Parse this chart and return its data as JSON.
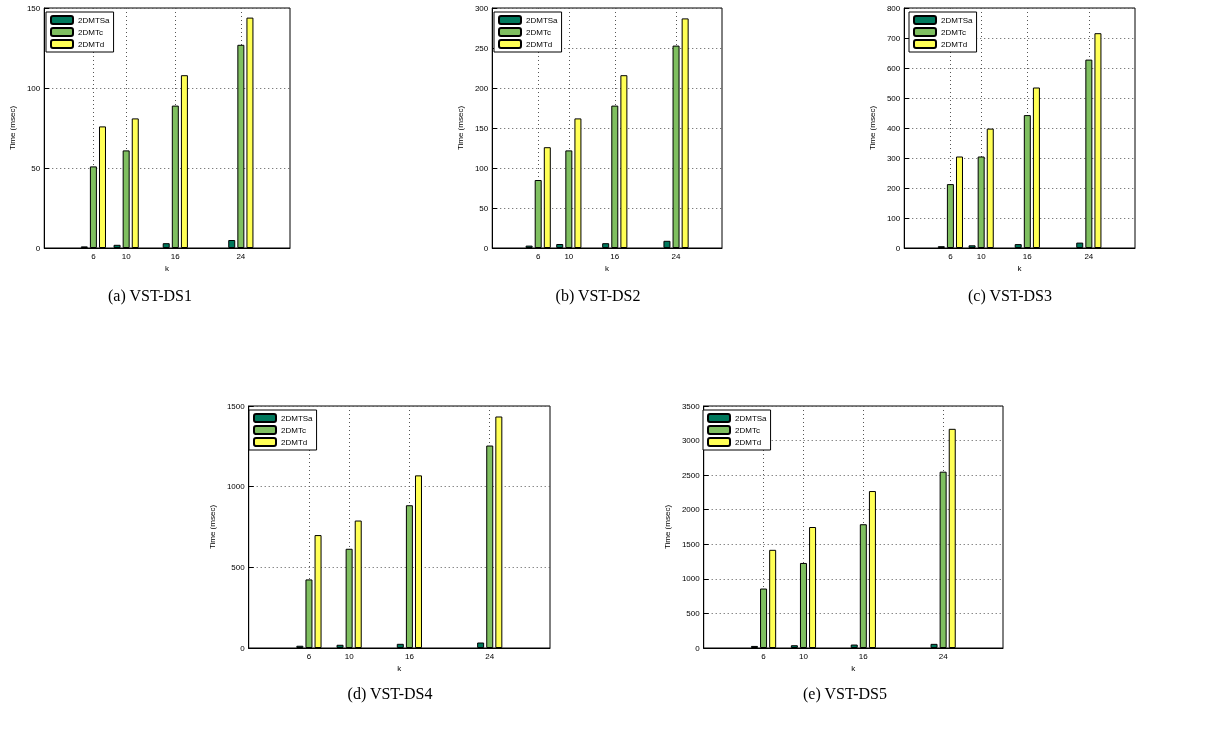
{
  "chart_data": [
    {
      "type": "bar",
      "title": "(a) VST-DS1",
      "xlabel": "k",
      "ylabel": "Time (msec)",
      "x": [
        6,
        10,
        16,
        24
      ],
      "xlim": [
        0,
        30
      ],
      "xticks": [
        6,
        10,
        16,
        24
      ],
      "ylim": [
        0,
        150
      ],
      "yticks": [
        0,
        50,
        100,
        150
      ],
      "grid": true,
      "legend": "top left",
      "series": [
        {
          "name": "2DMTSa",
          "color": "#00785c",
          "values": [
            1,
            2,
            3,
            5
          ]
        },
        {
          "name": "2DMTc",
          "color": "#7fbf60",
          "values": [
            51,
            61,
            89,
            127
          ]
        },
        {
          "name": "2DMTd",
          "color": "#ffff55",
          "values": [
            76,
            81,
            108,
            144
          ]
        }
      ]
    },
    {
      "type": "bar",
      "title": "(b) VST-DS2",
      "xlabel": "k",
      "ylabel": "Time (msec)",
      "x": [
        6,
        10,
        16,
        24
      ],
      "xlim": [
        0,
        30
      ],
      "xticks": [
        6,
        10,
        16,
        24
      ],
      "ylim": [
        0,
        300
      ],
      "yticks": [
        0,
        50,
        100,
        150,
        200,
        250,
        300
      ],
      "grid": true,
      "legend": "top left",
      "series": [
        {
          "name": "2DMTSa",
          "color": "#00785c",
          "values": [
            3,
            5,
            6,
            9
          ]
        },
        {
          "name": "2DMTc",
          "color": "#7fbf60",
          "values": [
            85,
            122,
            178,
            253
          ]
        },
        {
          "name": "2DMTd",
          "color": "#ffff55",
          "values": [
            126,
            162,
            216,
            287
          ]
        }
      ]
    },
    {
      "type": "bar",
      "title": "(c) VST-DS3",
      "xlabel": "k",
      "ylabel": "Time (msec)",
      "x": [
        6,
        10,
        16,
        24
      ],
      "xlim": [
        0,
        30
      ],
      "xticks": [
        6,
        10,
        16,
        24
      ],
      "ylim": [
        0,
        800
      ],
      "yticks": [
        0,
        100,
        200,
        300,
        400,
        500,
        600,
        700,
        800
      ],
      "grid": true,
      "legend": "top left",
      "series": [
        {
          "name": "2DMTSa",
          "color": "#00785c",
          "values": [
            6,
            9,
            13,
            18
          ]
        },
        {
          "name": "2DMTc",
          "color": "#7fbf60",
          "values": [
            213,
            305,
            443,
            628
          ]
        },
        {
          "name": "2DMTd",
          "color": "#ffff55",
          "values": [
            305,
            398,
            535,
            716
          ]
        }
      ]
    },
    {
      "type": "bar",
      "title": "(d) VST-DS4",
      "xlabel": "k",
      "ylabel": "Time (msec)",
      "x": [
        6,
        10,
        16,
        24
      ],
      "xlim": [
        0,
        30
      ],
      "xticks": [
        6,
        10,
        16,
        24
      ],
      "ylim": [
        0,
        1500
      ],
      "yticks": [
        0,
        500,
        1000,
        1500
      ],
      "grid": true,
      "legend": "top left",
      "series": [
        {
          "name": "2DMTSa",
          "color": "#00785c",
          "values": [
            14,
            20,
            26,
            34
          ]
        },
        {
          "name": "2DMTc",
          "color": "#7fbf60",
          "values": [
            425,
            615,
            885,
            1255
          ]
        },
        {
          "name": "2DMTd",
          "color": "#ffff55",
          "values": [
            700,
            790,
            1070,
            1435
          ]
        }
      ]
    },
    {
      "type": "bar",
      "title": "(e) VST-DS5",
      "xlabel": "k",
      "ylabel": "Time (msec)",
      "x": [
        6,
        10,
        16,
        24
      ],
      "xlim": [
        0,
        30
      ],
      "xticks": [
        6,
        10,
        16,
        24
      ],
      "ylim": [
        0,
        3500
      ],
      "yticks": [
        0,
        500,
        1000,
        1500,
        2000,
        2500,
        3000,
        3500
      ],
      "grid": true,
      "legend": "top left",
      "series": [
        {
          "name": "2DMTSa",
          "color": "#00785c",
          "values": [
            30,
            40,
            50,
            60
          ]
        },
        {
          "name": "2DMTc",
          "color": "#7fbf60",
          "values": [
            860,
            1230,
            1790,
            2550
          ]
        },
        {
          "name": "2DMTd",
          "color": "#ffff55",
          "values": [
            1420,
            1750,
            2270,
            3170
          ]
        }
      ]
    }
  ]
}
